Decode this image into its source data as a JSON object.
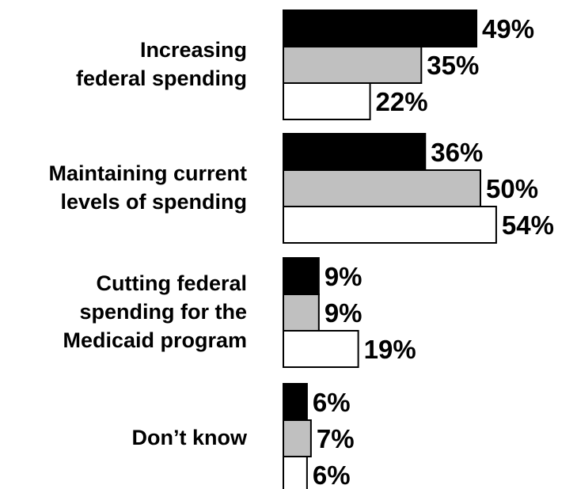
{
  "chart_data": {
    "type": "bar",
    "orientation": "horizontal",
    "title": "",
    "xlabel": "",
    "ylabel": "",
    "grid": false,
    "legend": "none",
    "categories": [
      [
        "Increasing",
        "federal spending"
      ],
      [
        "Maintaining current",
        "levels of spending"
      ],
      [
        "Cutting federal",
        "spending for the",
        "Medicaid program"
      ],
      [
        "Don’t know"
      ]
    ],
    "series": [
      {
        "color": "#000000",
        "values": [
          49,
          36,
          9,
          6
        ],
        "labels": [
          "49%",
          "36%",
          "9%",
          "6%"
        ]
      },
      {
        "color": "#c0c0c0",
        "values": [
          35,
          50,
          9,
          7
        ],
        "labels": [
          "35%",
          "50%",
          "9%",
          "7%"
        ]
      },
      {
        "color": "#ffffff",
        "values": [
          22,
          54,
          19,
          6
        ],
        "labels": [
          "22%",
          "54%",
          "19%",
          "6%"
        ]
      }
    ]
  }
}
